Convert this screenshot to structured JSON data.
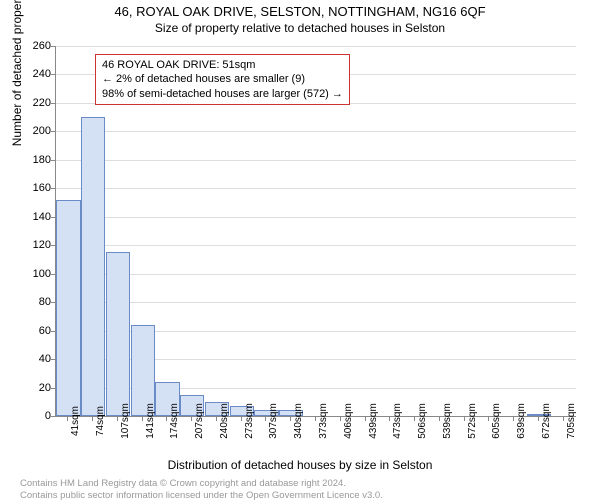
{
  "title_line1": "46, ROYAL OAK DRIVE, SELSTON, NOTTINGHAM, NG16 6QF",
  "title_line2": "Size of property relative to detached houses in Selston",
  "ylabel": "Number of detached properties",
  "xlabel": "Distribution of detached houses by size in Selston",
  "chart": {
    "type": "bar",
    "ylim": [
      0,
      260
    ],
    "ytick_step": 20,
    "xticks": [
      "41sqm",
      "74sqm",
      "107sqm",
      "141sqm",
      "174sqm",
      "207sqm",
      "240sqm",
      "273sqm",
      "307sqm",
      "340sqm",
      "373sqm",
      "406sqm",
      "439sqm",
      "473sqm",
      "506sqm",
      "539sqm",
      "572sqm",
      "605sqm",
      "639sqm",
      "672sqm",
      "705sqm"
    ],
    "values": [
      152,
      210,
      115,
      64,
      24,
      15,
      10,
      7,
      4,
      4,
      0,
      0,
      0,
      0,
      0,
      0,
      0,
      0,
      0,
      1,
      0
    ],
    "bar_fill": "#d4e0f4",
    "bar_border": "#6b8bc7",
    "grid_color": "#dddddd",
    "background_color": "#ffffff",
    "annotation_border": "#cc3333"
  },
  "annotation": {
    "line1": "46 ROYAL OAK DRIVE: 51sqm",
    "line2": "← 2% of detached houses are smaller (9)",
    "line3": "98% of semi-detached houses are larger (572) →"
  },
  "footer": {
    "line1": "Contains HM Land Registry data © Crown copyright and database right 2024.",
    "line2": "Contains public sector information licensed under the Open Government Licence v3.0."
  }
}
